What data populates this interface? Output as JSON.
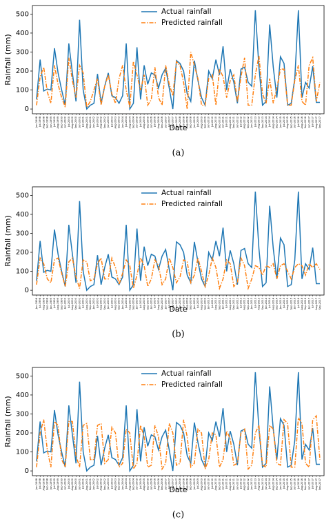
{
  "chart_data": [
    {
      "type": "line",
      "xlabel": "Date",
      "ylabel": "Rainfall (mm)",
      "caption": "(a)",
      "ylim": [
        -25,
        545
      ],
      "yticks": [
        0,
        100,
        200,
        300,
        400,
        500
      ],
      "legend": "upper center",
      "categories": [
        "Jun-1998",
        "Jul-1998",
        "Aug-1998",
        "Sep-1998",
        "Jun-1999",
        "Jul-1999",
        "Aug-1999",
        "Sep-1999",
        "Jun-2000",
        "Jul-2000",
        "Aug-2000",
        "Sep-2000",
        "Jun-2001",
        "Jul-2001",
        "Aug-2001",
        "Sep-2001",
        "Jun-2002",
        "Jul-2002",
        "Aug-2002",
        "Sep-2002",
        "Jun-2003",
        "Jul-2003",
        "Aug-2003",
        "Sep-2003",
        "Jun-2004",
        "Jul-2004",
        "Aug-2004",
        "Sep-2004",
        "Jun-2005",
        "Jul-2005",
        "Aug-2005",
        "Sep-2005",
        "Jun-2006",
        "Jul-2006",
        "Aug-2006",
        "Sep-2006",
        "Jun-2007",
        "Jul-2007",
        "Aug-2007",
        "Sep-2007",
        "Jun-2008",
        "Jul-2008",
        "Aug-2008",
        "Sep-2008",
        "Jun-2009",
        "Jul-2009",
        "Aug-2009",
        "Sep-2009",
        "Jun-2010",
        "Jul-2010",
        "Aug-2010",
        "Sep-2010",
        "Jun-2011",
        "Jul-2011",
        "Aug-2011",
        "Sep-2011",
        "Jun-2012",
        "Jul-2012",
        "Aug-2012",
        "Sep-2012",
        "Jun-2013",
        "Jul-2013",
        "Aug-2013",
        "Sep-2013",
        "Jun-2014",
        "Jul-2014",
        "Aug-2014",
        "Sep-2014",
        "Jun-2015",
        "Jul-2015",
        "Aug-2015",
        "Sep-2015",
        "Jun-2016",
        "Jul-2016",
        "Aug-2016",
        "Sep-2016",
        "Jun-2017",
        "Jul-2017",
        "Aug-2017",
        "Sep-2017"
      ],
      "series": [
        {
          "name": "Actual rainfall",
          "color": "#1f77b4",
          "values": [
            50,
            260,
            95,
            105,
            100,
            320,
            190,
            100,
            20,
            345,
            190,
            40,
            470,
            100,
            0,
            20,
            30,
            185,
            30,
            120,
            190,
            70,
            60,
            30,
            70,
            345,
            0,
            30,
            325,
            50,
            230,
            130,
            190,
            180,
            110,
            180,
            215,
            110,
            0,
            255,
            240,
            200,
            80,
            40,
            255,
            150,
            60,
            20,
            200,
            160,
            260,
            180,
            330,
            100,
            210,
            140,
            30,
            210,
            220,
            140,
            120,
            520,
            220,
            20,
            40,
            445,
            220,
            60,
            275,
            240,
            20,
            30,
            160,
            520,
            60,
            140,
            110,
            225,
            35,
            35
          ]
        },
        {
          "name": "Predicted rainfall",
          "color": "#ff7f0e",
          "dash": "6 2 1.5 2",
          "values": [
            20,
            170,
            220,
            90,
            30,
            230,
            130,
            60,
            10,
            270,
            150,
            60,
            230,
            190,
            10,
            40,
            100,
            160,
            20,
            120,
            180,
            80,
            30,
            160,
            230,
            100,
            10,
            250,
            180,
            100,
            180,
            20,
            50,
            220,
            60,
            20,
            230,
            130,
            70,
            250,
            230,
            140,
            0,
            300,
            230,
            160,
            20,
            20,
            160,
            180,
            20,
            210,
            170,
            60,
            150,
            180,
            40,
            170,
            270,
            20,
            20,
            180,
            280,
            80,
            30,
            160,
            30,
            110,
            210,
            210,
            20,
            20,
            150,
            230,
            40,
            20,
            230,
            270,
            40,
            140
          ]
        }
      ]
    },
    {
      "type": "line",
      "xlabel": "Date",
      "ylabel": "Rainfall (mm)",
      "caption": "(b)",
      "ylim": [
        -25,
        545
      ],
      "yticks": [
        0,
        100,
        200,
        300,
        400,
        500
      ],
      "legend": "upper center",
      "categories": [
        "Jun-1998",
        "Jul-1998",
        "Aug-1998",
        "Sep-1998",
        "Jun-1999",
        "Jul-1999",
        "Aug-1999",
        "Sep-1999",
        "Jun-2000",
        "Jul-2000",
        "Aug-2000",
        "Sep-2000",
        "Jun-2001",
        "Jul-2001",
        "Aug-2001",
        "Sep-2001",
        "Jun-2002",
        "Jul-2002",
        "Aug-2002",
        "Sep-2002",
        "Jun-2003",
        "Jul-2003",
        "Aug-2003",
        "Sep-2003",
        "Jun-2004",
        "Jul-2004",
        "Aug-2004",
        "Sep-2004",
        "Jun-2005",
        "Jul-2005",
        "Aug-2005",
        "Sep-2005",
        "Jun-2006",
        "Jul-2006",
        "Aug-2006",
        "Sep-2006",
        "Jun-2007",
        "Jul-2007",
        "Aug-2007",
        "Sep-2007",
        "Jun-2008",
        "Jul-2008",
        "Aug-2008",
        "Sep-2008",
        "Jun-2009",
        "Jul-2009",
        "Aug-2009",
        "Sep-2009",
        "Jun-2010",
        "Jul-2010",
        "Aug-2010",
        "Sep-2010",
        "Jun-2011",
        "Jul-2011",
        "Aug-2011",
        "Sep-2011",
        "Jun-2012",
        "Jul-2012",
        "Aug-2012",
        "Sep-2012",
        "Jun-2013",
        "Jul-2013",
        "Aug-2013",
        "Sep-2013",
        "Jun-2014",
        "Jul-2014",
        "Aug-2014",
        "Sep-2014",
        "Jun-2015",
        "Jul-2015",
        "Aug-2015",
        "Sep-2015",
        "Jun-2016",
        "Jul-2016",
        "Aug-2016",
        "Sep-2016",
        "Jun-2017",
        "Jul-2017",
        "Aug-2017",
        "Sep-2017"
      ],
      "series": [
        {
          "name": "Actual rainfall",
          "color": "#1f77b4",
          "values": [
            50,
            260,
            95,
            105,
            100,
            320,
            190,
            100,
            20,
            345,
            190,
            40,
            470,
            100,
            0,
            20,
            30,
            185,
            30,
            120,
            190,
            70,
            60,
            30,
            70,
            345,
            0,
            30,
            325,
            50,
            230,
            130,
            190,
            180,
            110,
            180,
            215,
            110,
            0,
            255,
            240,
            200,
            80,
            40,
            255,
            150,
            60,
            20,
            200,
            160,
            260,
            180,
            330,
            100,
            210,
            140,
            30,
            210,
            220,
            140,
            120,
            520,
            220,
            20,
            40,
            445,
            220,
            60,
            275,
            240,
            20,
            30,
            160,
            520,
            60,
            140,
            110,
            225,
            35,
            35
          ]
        },
        {
          "name": "Predicted rainfall",
          "color": "#ff7f0e",
          "dash": "6 2 1.5 2",
          "values": [
            30,
            170,
            140,
            60,
            40,
            160,
            170,
            90,
            20,
            150,
            170,
            70,
            10,
            160,
            150,
            50,
            60,
            140,
            170,
            60,
            60,
            170,
            120,
            30,
            90,
            160,
            130,
            10,
            80,
            170,
            130,
            20,
            60,
            160,
            130,
            30,
            60,
            170,
            120,
            40,
            70,
            160,
            150,
            40,
            80,
            170,
            100,
            20,
            80,
            170,
            120,
            10,
            60,
            160,
            140,
            20,
            40,
            170,
            130,
            10,
            60,
            130,
            120,
            80,
            130,
            120,
            140,
            60,
            130,
            140,
            100,
            60,
            120,
            140,
            130,
            80,
            140,
            120,
            140,
            110
          ]
        }
      ]
    },
    {
      "type": "line",
      "xlabel": "Date",
      "ylabel": "Rainfall (mm)",
      "caption": "(c)",
      "ylim": [
        -25,
        545
      ],
      "yticks": [
        0,
        100,
        200,
        300,
        400,
        500
      ],
      "legend": "upper center",
      "categories": [
        "Jun-1998",
        "Jul-1998",
        "Aug-1998",
        "Sep-1998",
        "Jun-1999",
        "Jul-1999",
        "Aug-1999",
        "Sep-1999",
        "Jun-2000",
        "Jul-2000",
        "Aug-2000",
        "Sep-2000",
        "Jun-2001",
        "Jul-2001",
        "Aug-2001",
        "Sep-2001",
        "Jun-2002",
        "Jul-2002",
        "Aug-2002",
        "Sep-2002",
        "Jun-2003",
        "Jul-2003",
        "Aug-2003",
        "Sep-2003",
        "Jun-2004",
        "Jul-2004",
        "Aug-2004",
        "Sep-2004",
        "Jun-2005",
        "Jul-2005",
        "Aug-2005",
        "Sep-2005",
        "Jun-2006",
        "Jul-2006",
        "Aug-2006",
        "Sep-2006",
        "Jun-2007",
        "Jul-2007",
        "Aug-2007",
        "Sep-2007",
        "Jun-2008",
        "Jul-2008",
        "Aug-2008",
        "Sep-2008",
        "Jun-2009",
        "Jul-2009",
        "Aug-2009",
        "Sep-2009",
        "Jun-2010",
        "Jul-2010",
        "Aug-2010",
        "Sep-2010",
        "Jun-2011",
        "Jul-2011",
        "Aug-2011",
        "Sep-2011",
        "Jun-2012",
        "Jul-2012",
        "Aug-2012",
        "Sep-2012",
        "Jun-2013",
        "Jul-2013",
        "Aug-2013",
        "Sep-2013",
        "Jun-2014",
        "Jul-2014",
        "Aug-2014",
        "Sep-2014",
        "Jun-2015",
        "Jul-2015",
        "Aug-2015",
        "Sep-2015",
        "Jun-2016",
        "Jul-2016",
        "Aug-2016",
        "Sep-2016",
        "Jun-2017",
        "Jul-2017",
        "Aug-2017",
        "Sep-2017"
      ],
      "series": [
        {
          "name": "Actual rainfall",
          "color": "#1f77b4",
          "values": [
            50,
            260,
            95,
            105,
            100,
            320,
            190,
            100,
            20,
            345,
            190,
            40,
            470,
            100,
            0,
            20,
            30,
            185,
            30,
            120,
            190,
            70,
            60,
            30,
            70,
            345,
            0,
            30,
            325,
            50,
            230,
            130,
            190,
            180,
            110,
            180,
            215,
            110,
            0,
            255,
            240,
            200,
            80,
            40,
            255,
            150,
            60,
            20,
            200,
            160,
            260,
            180,
            330,
            100,
            210,
            140,
            30,
            210,
            220,
            140,
            120,
            520,
            220,
            20,
            40,
            445,
            220,
            60,
            275,
            240,
            20,
            30,
            160,
            520,
            60,
            140,
            110,
            225,
            35,
            35
          ]
        },
        {
          "name": "Predicted rainfall",
          "color": "#ff7f0e",
          "dash": "6 2 1.5 2",
          "values": [
            20,
            200,
            270,
            110,
            20,
            260,
            240,
            60,
            20,
            260,
            260,
            80,
            20,
            240,
            250,
            60,
            60,
            240,
            250,
            40,
            60,
            230,
            200,
            20,
            40,
            220,
            200,
            10,
            40,
            240,
            180,
            20,
            30,
            240,
            180,
            10,
            40,
            250,
            200,
            30,
            40,
            270,
            180,
            20,
            40,
            220,
            200,
            10,
            60,
            200,
            190,
            20,
            60,
            210,
            170,
            30,
            40,
            200,
            220,
            10,
            30,
            200,
            240,
            30,
            20,
            240,
            220,
            40,
            30,
            270,
            250,
            20,
            20,
            280,
            250,
            40,
            20,
            270,
            290,
            60
          ]
        }
      ]
    }
  ]
}
